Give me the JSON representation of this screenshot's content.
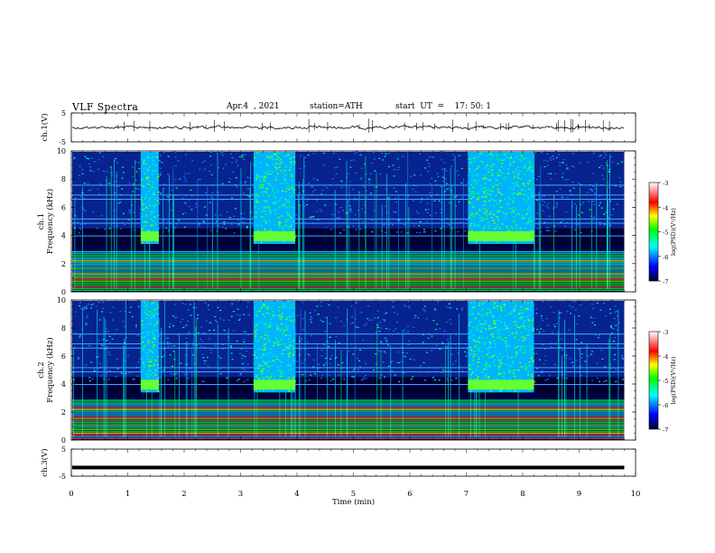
{
  "header": {
    "title": "VLF  Spectra",
    "date": "Apr.4  , 2021",
    "station": "station=ATH",
    "start_ut": "start  UT  =    17: 50: 1"
  },
  "chart_data": [
    {
      "type": "line",
      "title": "",
      "ylabel": "ch.1(V)",
      "ylim": [
        -5,
        5
      ],
      "y_ticks": [
        "5",
        "-5"
      ],
      "xlim": [
        0,
        10
      ],
      "x_data_end": 9.8,
      "series": [
        {
          "x": [
            0,
            9.8
          ],
          "y": [
            0,
            0
          ]
        }
      ],
      "color": "#000000"
    },
    {
      "type": "heatmap",
      "ylabel": "ch.1\nFrequency  (kHz)",
      "ylim": [
        0,
        10
      ],
      "y_ticks": [
        "0",
        "2",
        "4",
        "6",
        "8",
        "10"
      ],
      "xlim": [
        0,
        10
      ],
      "x_data_end": 9.8,
      "intense_periods_min": [
        [
          1.23,
          1.55
        ],
        [
          3.23,
          3.97
        ],
        [
          7.03,
          8.2
        ]
      ],
      "colorbar": {
        "label": "log(PSD)(V²/Hz)",
        "range": [
          -7,
          -3
        ],
        "ticks": [
          "-3",
          "-4",
          "-5",
          "-6",
          "-7"
        ],
        "colors": [
          "#000033",
          "#0000ff",
          "#00ffff",
          "#00ff00",
          "#ffff00",
          "#ff0000",
          "#ffffff"
        ]
      }
    },
    {
      "type": "heatmap",
      "ylabel": "ch.2\nFrequency  (kHz)",
      "ylim": [
        0,
        10
      ],
      "y_ticks": [
        "0",
        "2",
        "4",
        "6",
        "8",
        "10"
      ],
      "xlim": [
        0,
        10
      ],
      "x_data_end": 9.8,
      "intense_periods_min": [
        [
          1.23,
          1.55
        ],
        [
          3.23,
          3.97
        ],
        [
          7.03,
          8.2
        ]
      ],
      "colorbar": {
        "label": "log(PSD)(V²/Hz)",
        "range": [
          -7,
          -3
        ],
        "ticks": [
          "-3",
          "-4",
          "-5",
          "-6",
          "-7"
        ],
        "colors": [
          "#000033",
          "#0000ff",
          "#00ffff",
          "#00ff00",
          "#ffff00",
          "#ff0000",
          "#ffffff"
        ]
      }
    },
    {
      "type": "line",
      "ylabel": "ch.3(V)",
      "ylim": [
        -5,
        5
      ],
      "y_ticks": [
        "5",
        "-5"
      ],
      "xlim": [
        0,
        10
      ],
      "x_data_end": 9.8,
      "series": [
        {
          "x": [
            0,
            9.8
          ],
          "y": [
            -1.8,
            -1.8
          ]
        }
      ],
      "color": "#000000"
    }
  ],
  "x_axis": {
    "label": "Time  (min)",
    "ticks": [
      "0",
      "1",
      "2",
      "3",
      "4",
      "5",
      "6",
      "7",
      "8",
      "9",
      "10"
    ]
  }
}
